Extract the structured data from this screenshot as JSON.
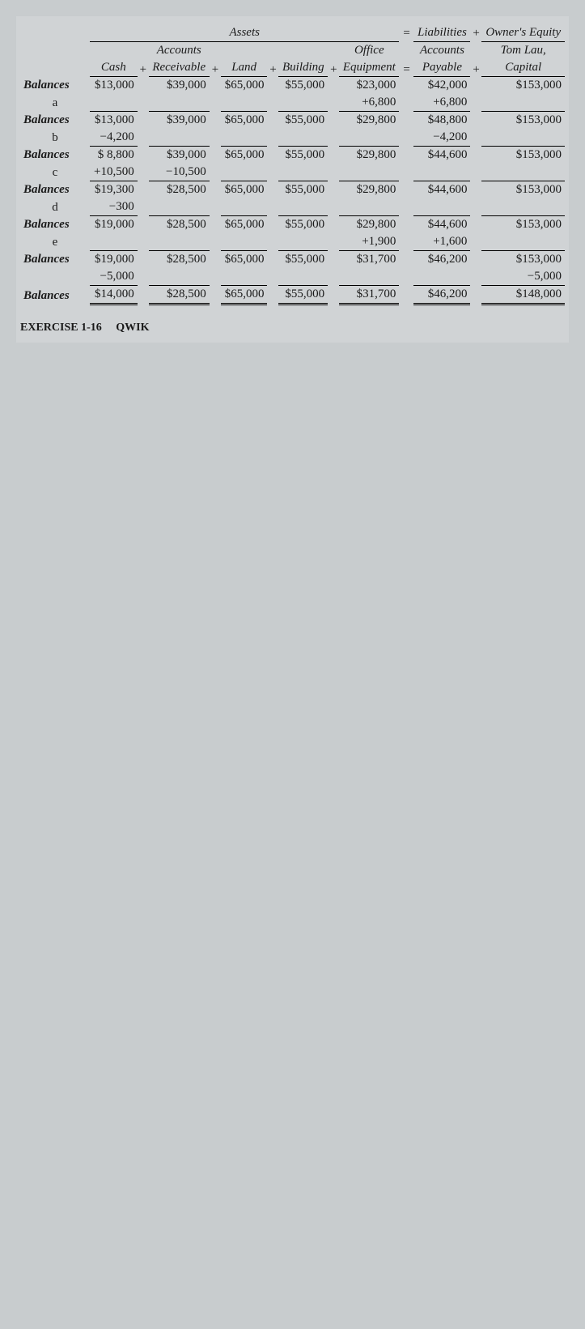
{
  "section_headers": {
    "assets": "Assets",
    "eq": "=",
    "liab": "Liabilities",
    "plus": "+",
    "owners": "Owner's Equity"
  },
  "col_headers": {
    "cash": "Cash",
    "ar_line1": "Accounts",
    "ar_line2": "Receivable",
    "land": "Land",
    "building": "Building",
    "oe_line1": "Office",
    "oe_line2": "Equipment",
    "ap_line1": "Accounts",
    "ap_line2": "Payable",
    "cap_line1": "Tom Lau,",
    "cap_line2": "Capital",
    "plus": "+",
    "eq": "="
  },
  "rows": [
    {
      "label": "Balances",
      "cash": "$13,000",
      "ar": "$39,000",
      "land": "$65,000",
      "bldg": "$55,000",
      "oe": "$23,000",
      "ap": "$42,000",
      "cap": "$153,000"
    },
    {
      "label": "a",
      "txn": true,
      "cash": "",
      "ar": "",
      "land": "",
      "bldg": "",
      "oe": "+6,800",
      "ap": "+6,800",
      "cap": "",
      "under_oe": true,
      "under_ap": true
    },
    {
      "label": "Balances",
      "cash": "$13,000",
      "ar": "$39,000",
      "land": "$65,000",
      "bldg": "$55,000",
      "oe": "$29,800",
      "ap": "$48,800",
      "cap": "$153,000",
      "over_all": true
    },
    {
      "label": "b",
      "txn": true,
      "cash": "−4,200",
      "ar": "",
      "land": "",
      "bldg": "",
      "oe": "",
      "ap": "−4,200",
      "cap": "",
      "under_cash": true,
      "under_ap": true
    },
    {
      "label": "Balances",
      "cash": "$ 8,800",
      "ar": "$39,000",
      "land": "$65,000",
      "bldg": "$55,000",
      "oe": "$29,800",
      "ap": "$44,600",
      "cap": "$153,000",
      "over_all": true
    },
    {
      "label": "c",
      "txn": true,
      "cash": "+10,500",
      "ar": "−10,500",
      "land": "",
      "bldg": "",
      "oe": "",
      "ap": "",
      "cap": "",
      "under_cash": true,
      "under_ar": true
    },
    {
      "label": "Balances",
      "cash": "$19,300",
      "ar": "$28,500",
      "land": "$65,000",
      "bldg": "$55,000",
      "oe": "$29,800",
      "ap": "$44,600",
      "cap": "$153,000",
      "over_all": true
    },
    {
      "label": "d",
      "txn": true,
      "cash": "−300",
      "ar": "",
      "land": "",
      "bldg": "",
      "oe": "",
      "ap": "",
      "cap": "",
      "under_cash": true
    },
    {
      "label": "Balances",
      "cash": "$19,000",
      "ar": "$28,500",
      "land": "$65,000",
      "bldg": "$55,000",
      "oe": "$29,800",
      "ap": "$44,600",
      "cap": "$153,000",
      "over_all": true
    },
    {
      "label": "e",
      "txn": true,
      "cash": "",
      "ar": "",
      "land": "",
      "bldg": "",
      "oe": "+1,900",
      "ap": "+1,600",
      "cap": "",
      "under_oe": true,
      "under_ap": true
    },
    {
      "label": "Balances",
      "cash": "$19,000",
      "ar": "$28,500",
      "land": "$65,000",
      "bldg": "$55,000",
      "oe": "$31,700",
      "ap": "$46,200",
      "cap": "$153,000",
      "over_all": true
    },
    {
      "label": "",
      "txn": true,
      "cash": "−5,000",
      "ar": "",
      "land": "",
      "bldg": "",
      "oe": "",
      "ap": "",
      "cap": "−5,000",
      "under_cash": true,
      "under_cap": true
    },
    {
      "label": "Balances",
      "final": true,
      "cash": "$14,000",
      "ar": "$28,500",
      "land": "$65,000",
      "bldg": "$55,000",
      "oe": "$31,700",
      "ap": "$46,200",
      "cap": "$148,000",
      "over_all": true
    }
  ],
  "footer_left": "EXERCISE 1-16",
  "footer_right": "QWIK"
}
